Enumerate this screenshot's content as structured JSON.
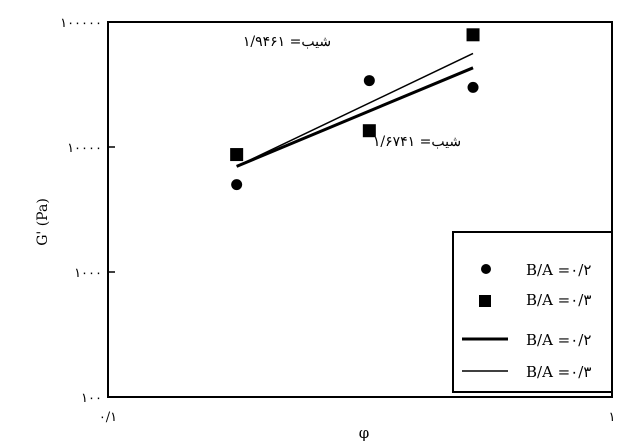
{
  "chart_data": {
    "type": "scatter",
    "title": "",
    "xlabel": "φ",
    "ylabel": "G' (Pa)",
    "x_scale": "log",
    "y_scale": "log",
    "xlim": [
      0.1,
      1
    ],
    "ylim": [
      100,
      100000
    ],
    "x_tick_values": [
      0.1,
      1
    ],
    "x_tick_labels": [
      "۰/۱",
      "۱"
    ],
    "y_tick_values": [
      100,
      1000,
      10000,
      100000
    ],
    "y_tick_labels": [
      "۱۰۰",
      "۱۰۰۰",
      "۱۰۰۰۰",
      "۱۰۰۰۰۰"
    ],
    "grid": false,
    "legend_position": "bottom-right",
    "legend": [
      {
        "label": "B/A =۰/۲",
        "marker": "circle"
      },
      {
        "label": "B/A =۰/۳",
        "marker": "square"
      },
      {
        "label": "B/A =۰/۲",
        "line": "thick"
      },
      {
        "label": "B/A =۰/۳",
        "line": "thin"
      }
    ],
    "series": [
      {
        "marker": "circle",
        "x": [
          0.18,
          0.33,
          0.53
        ],
        "y": [
          5000,
          34000,
          30000
        ]
      },
      {
        "marker": "square",
        "x": [
          0.18,
          0.33,
          0.53
        ],
        "y": [
          8700,
          13500,
          79000
        ]
      }
    ],
    "fit_lines": [
      {
        "style": "thick",
        "x": [
          0.18,
          0.53
        ],
        "y": [
          7000,
          43000
        ]
      },
      {
        "style": "thin",
        "x": [
          0.18,
          0.53
        ],
        "y": [
          7000,
          56000
        ]
      }
    ],
    "annotations": [
      {
        "text": "شیب= ۱/۹۴۶۱"
      },
      {
        "text": "شیب= ۱/۶۷۴۱"
      }
    ],
    "colors": {
      "ink": "#000000",
      "background": "#ffffff"
    }
  }
}
